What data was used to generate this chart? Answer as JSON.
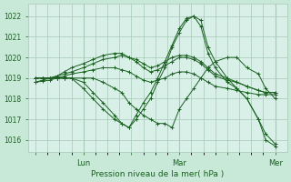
{
  "bg_outer": "#c8e8d8",
  "bg_plot": "#d8f0e8",
  "grid_color": "#a8c8b8",
  "line_color": "#1a6020",
  "ylabel_text": "Pression niveau de la mer( hPa )",
  "xtick_labels": [
    "",
    "Lun",
    "",
    "Mar",
    "",
    "Mer"
  ],
  "xtick_positions": [
    0,
    0.333,
    0.667,
    1.0,
    1.333,
    1.667
  ],
  "ylim": [
    1015.4,
    1022.6
  ],
  "xlim": [
    -0.05,
    1.75
  ],
  "yticks": [
    1016,
    1017,
    1018,
    1019,
    1020,
    1021,
    1022
  ],
  "ytick_fontsize": 5.5,
  "xtick_fontsize": 6,
  "xlabel_fontsize": 6.5,
  "series": [
    {
      "x": [
        0.0,
        0.05,
        0.1,
        0.15,
        0.2,
        0.25,
        0.333,
        0.4,
        0.47,
        0.55,
        0.6,
        0.65,
        0.7,
        0.75,
        0.8,
        0.85,
        0.9,
        0.95,
        1.0,
        1.05,
        1.1,
        1.15,
        1.2,
        1.25,
        1.333,
        1.4,
        1.47,
        1.55,
        1.6,
        1.667
      ],
      "y": [
        1019.0,
        1019.0,
        1019.0,
        1019.0,
        1019.0,
        1019.0,
        1019.0,
        1019.0,
        1018.8,
        1018.5,
        1018.3,
        1017.8,
        1017.5,
        1017.2,
        1017.0,
        1016.8,
        1016.8,
        1016.6,
        1017.5,
        1018.0,
        1018.5,
        1019.0,
        1019.5,
        1019.8,
        1020.0,
        1020.0,
        1019.5,
        1019.2,
        1018.5,
        1018.0
      ]
    },
    {
      "x": [
        0.0,
        0.05,
        0.1,
        0.15,
        0.2,
        0.25,
        0.333,
        0.4,
        0.47,
        0.55,
        0.6,
        0.65,
        0.7,
        0.75,
        0.8,
        0.85,
        0.9,
        0.95,
        1.0,
        1.05,
        1.1,
        1.15,
        1.2,
        1.25,
        1.333,
        1.4,
        1.47,
        1.55,
        1.6,
        1.667
      ],
      "y": [
        1019.0,
        1019.0,
        1019.0,
        1019.0,
        1019.0,
        1019.0,
        1018.5,
        1018.0,
        1017.5,
        1017.0,
        1016.8,
        1016.6,
        1017.0,
        1017.5,
        1018.0,
        1018.8,
        1019.5,
        1020.5,
        1021.2,
        1021.8,
        1022.0,
        1021.8,
        1020.5,
        1019.8,
        1019.0,
        1018.5,
        1018.0,
        1017.0,
        1016.3,
        1015.8
      ]
    },
    {
      "x": [
        0.0,
        0.05,
        0.1,
        0.15,
        0.2,
        0.25,
        0.333,
        0.4,
        0.47,
        0.55,
        0.6,
        0.65,
        0.7,
        0.75,
        0.8,
        0.85,
        0.9,
        0.95,
        1.0,
        1.05,
        1.1,
        1.15,
        1.2,
        1.25,
        1.333,
        1.4,
        1.47,
        1.55,
        1.6,
        1.667
      ],
      "y": [
        1018.8,
        1018.9,
        1019.0,
        1019.0,
        1019.0,
        1019.0,
        1018.8,
        1018.3,
        1017.8,
        1017.2,
        1016.8,
        1016.6,
        1017.2,
        1017.8,
        1018.3,
        1019.0,
        1019.8,
        1020.6,
        1021.4,
        1021.9,
        1022.0,
        1021.5,
        1020.2,
        1019.5,
        1018.8,
        1018.5,
        1018.0,
        1017.0,
        1016.0,
        1015.7
      ]
    },
    {
      "x": [
        0.0,
        0.05,
        0.1,
        0.15,
        0.2,
        0.25,
        0.333,
        0.4,
        0.47,
        0.55,
        0.6,
        0.65,
        0.7,
        0.75,
        0.8,
        0.85,
        0.9,
        0.95,
        1.0,
        1.05,
        1.1,
        1.15,
        1.2,
        1.25,
        1.333,
        1.4,
        1.47,
        1.55,
        1.6,
        1.667
      ],
      "y": [
        1019.0,
        1019.0,
        1019.0,
        1019.1,
        1019.2,
        1019.3,
        1019.5,
        1019.7,
        1019.9,
        1020.0,
        1020.1,
        1020.0,
        1019.9,
        1019.7,
        1019.5,
        1019.6,
        1019.8,
        1020.0,
        1020.1,
        1020.1,
        1020.0,
        1019.8,
        1019.5,
        1019.2,
        1019.0,
        1018.8,
        1018.6,
        1018.4,
        1018.3,
        1018.3
      ]
    },
    {
      "x": [
        0.0,
        0.05,
        0.1,
        0.15,
        0.2,
        0.25,
        0.333,
        0.4,
        0.47,
        0.55,
        0.6,
        0.65,
        0.7,
        0.75,
        0.8,
        0.85,
        0.9,
        0.95,
        1.0,
        1.05,
        1.1,
        1.15,
        1.2,
        1.25,
        1.333,
        1.4,
        1.47,
        1.55,
        1.6,
        1.667
      ],
      "y": [
        1019.0,
        1019.0,
        1019.0,
        1019.1,
        1019.3,
        1019.5,
        1019.7,
        1019.9,
        1020.1,
        1020.2,
        1020.2,
        1020.0,
        1019.8,
        1019.5,
        1019.3,
        1019.4,
        1019.6,
        1019.8,
        1020.0,
        1020.0,
        1019.9,
        1019.7,
        1019.4,
        1019.1,
        1018.9,
        1018.8,
        1018.6,
        1018.4,
        1018.3,
        1018.3
      ]
    },
    {
      "x": [
        0.0,
        0.05,
        0.1,
        0.15,
        0.2,
        0.25,
        0.333,
        0.4,
        0.47,
        0.55,
        0.6,
        0.65,
        0.7,
        0.75,
        0.8,
        0.85,
        0.9,
        0.95,
        1.0,
        1.05,
        1.1,
        1.15,
        1.2,
        1.25,
        1.333,
        1.4,
        1.47,
        1.55,
        1.6,
        1.667
      ],
      "y": [
        1018.8,
        1018.85,
        1018.9,
        1019.0,
        1019.1,
        1019.2,
        1019.3,
        1019.4,
        1019.5,
        1019.5,
        1019.4,
        1019.3,
        1019.1,
        1018.9,
        1018.8,
        1018.9,
        1019.0,
        1019.2,
        1019.3,
        1019.3,
        1019.2,
        1019.0,
        1018.8,
        1018.6,
        1018.5,
        1018.4,
        1018.3,
        1018.2,
        1018.2,
        1018.2
      ]
    }
  ],
  "vlines_x": [
    0.333,
    1.0,
    1.667
  ],
  "minor_grid_x_positions": [
    0.0,
    0.083,
    0.167,
    0.25,
    0.333,
    0.417,
    0.5,
    0.583,
    0.667,
    0.75,
    0.833,
    0.917,
    1.0,
    1.083,
    1.167,
    1.25,
    1.333,
    1.417,
    1.5,
    1.583,
    1.667
  ]
}
